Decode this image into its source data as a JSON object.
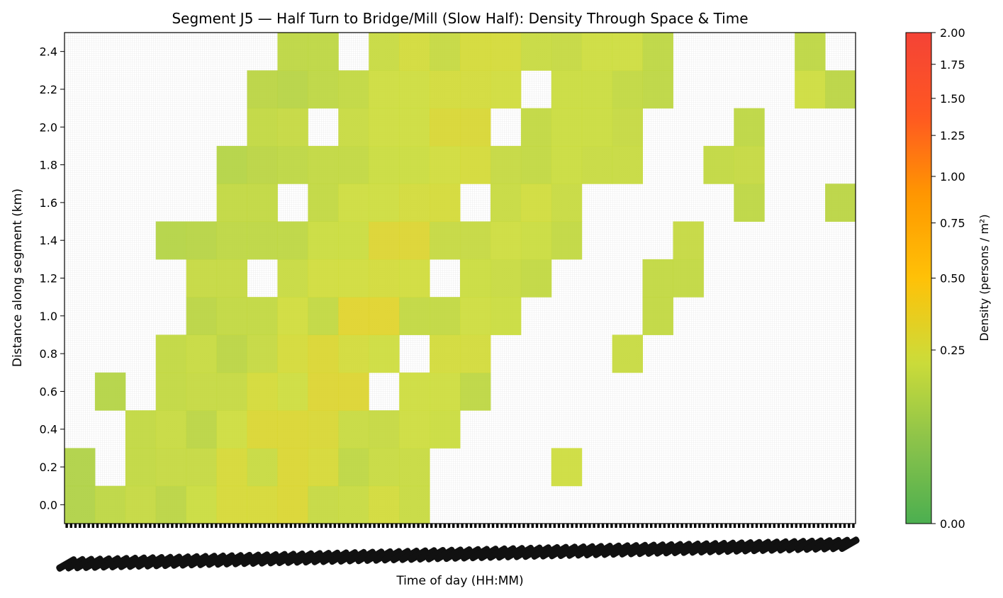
{
  "chart_data": {
    "type": "heatmap",
    "title": "Segment J5 — Half Turn to Bridge/Mill (Slow Half): Density Through Space & Time",
    "xlabel": "Time of day (HH:MM)",
    "ylabel": "Distance along segment (km)",
    "y_ticks": [
      "0.0",
      "0.2",
      "0.4",
      "0.6",
      "0.8",
      "1.0",
      "1.2",
      "1.4",
      "1.6",
      "1.8",
      "2.0",
      "2.2",
      "2.4"
    ],
    "y_bins_km": [
      0.0,
      0.2,
      0.4,
      0.6,
      0.8,
      1.0,
      1.2,
      1.4,
      1.6,
      1.8,
      2.0,
      2.2,
      2.4
    ],
    "time_bins": 26,
    "x_tick_labels_legible": false,
    "colorbar": {
      "label": "Density (persons / m²)",
      "ticks": [
        "0.00",
        "0.25",
        "0.50",
        "0.75",
        "1.00",
        "1.25",
        "1.50",
        "1.75",
        "2.00"
      ],
      "tick_values": [
        0.0,
        0.25,
        0.5,
        0.75,
        1.0,
        1.25,
        1.5,
        1.75,
        2.0
      ],
      "range": [
        0.0,
        2.0
      ],
      "colors": [
        "#4caf50",
        "#8bc34a",
        "#cddc39",
        "#ffc107",
        "#ff9800",
        "#ff5722",
        "#f44336"
      ]
    },
    "grid": true,
    "density_matrix_rows_by_distance": [
      [
        0.13,
        0.17,
        0.19,
        0.16,
        0.21,
        0.26,
        0.26,
        0.28,
        0.19,
        0.2,
        0.24,
        0.2,
        null,
        null,
        null,
        null,
        null,
        null,
        null,
        null,
        null,
        null,
        null,
        null,
        null,
        null
      ],
      [
        0.13,
        null,
        0.18,
        0.19,
        0.19,
        0.26,
        0.2,
        0.28,
        0.26,
        0.17,
        0.2,
        0.2,
        null,
        null,
        null,
        null,
        0.22,
        null,
        null,
        null,
        null,
        null,
        null,
        null,
        null,
        null
      ],
      [
        null,
        null,
        0.18,
        0.2,
        0.16,
        0.22,
        0.28,
        0.28,
        0.27,
        0.2,
        0.19,
        0.22,
        0.21,
        null,
        null,
        null,
        null,
        null,
        null,
        null,
        null,
        null,
        null,
        null,
        null,
        null
      ],
      [
        null,
        0.14,
        null,
        0.18,
        0.19,
        0.19,
        0.25,
        0.22,
        0.29,
        0.29,
        null,
        0.22,
        0.22,
        0.17,
        null,
        null,
        null,
        null,
        null,
        null,
        null,
        null,
        null,
        null,
        null,
        null
      ],
      [
        null,
        null,
        null,
        0.18,
        0.2,
        0.16,
        0.19,
        0.25,
        0.28,
        0.24,
        0.22,
        null,
        0.24,
        0.24,
        null,
        null,
        null,
        null,
        0.2,
        null,
        null,
        null,
        null,
        null,
        null,
        null
      ],
      [
        null,
        null,
        null,
        null,
        0.16,
        0.18,
        0.18,
        0.23,
        0.18,
        0.31,
        0.31,
        0.18,
        0.18,
        0.22,
        0.21,
        null,
        null,
        null,
        null,
        0.18,
        null,
        null,
        null,
        null,
        null,
        null
      ],
      [
        null,
        null,
        null,
        null,
        0.19,
        0.19,
        null,
        0.2,
        0.23,
        0.23,
        0.24,
        0.23,
        null,
        0.21,
        0.2,
        0.18,
        null,
        null,
        null,
        0.18,
        0.18,
        null,
        null,
        null,
        null,
        null
      ],
      [
        null,
        null,
        null,
        0.14,
        0.15,
        0.17,
        0.17,
        0.17,
        0.21,
        0.21,
        0.29,
        0.29,
        0.19,
        0.19,
        0.22,
        0.21,
        0.18,
        null,
        null,
        null,
        0.19,
        null,
        null,
        null,
        null,
        null
      ],
      [
        null,
        null,
        null,
        null,
        null,
        0.18,
        0.18,
        null,
        0.18,
        0.22,
        0.22,
        0.24,
        0.25,
        null,
        0.2,
        0.23,
        0.2,
        null,
        null,
        null,
        null,
        null,
        0.17,
        null,
        null,
        0.16
      ],
      [
        null,
        null,
        null,
        null,
        null,
        0.14,
        0.16,
        0.17,
        0.18,
        0.18,
        0.21,
        0.21,
        0.23,
        0.25,
        0.19,
        0.18,
        0.21,
        0.2,
        0.2,
        null,
        null,
        0.18,
        0.19,
        null,
        null,
        null
      ],
      [
        null,
        null,
        null,
        null,
        null,
        null,
        0.18,
        0.19,
        null,
        0.2,
        0.22,
        0.22,
        0.27,
        0.27,
        null,
        0.18,
        0.21,
        0.21,
        0.19,
        null,
        null,
        null,
        0.17,
        null,
        null,
        null
      ],
      [
        null,
        null,
        null,
        null,
        null,
        null,
        0.16,
        0.15,
        0.17,
        0.18,
        0.22,
        0.22,
        0.24,
        0.24,
        0.23,
        null,
        0.21,
        0.21,
        0.18,
        0.17,
        null,
        null,
        null,
        null,
        0.22,
        0.16
      ],
      [
        null,
        null,
        null,
        null,
        null,
        null,
        null,
        0.17,
        0.17,
        null,
        0.2,
        0.24,
        0.19,
        0.25,
        0.25,
        0.2,
        0.19,
        0.22,
        0.22,
        0.17,
        null,
        null,
        null,
        null,
        0.17,
        null
      ]
    ]
  }
}
